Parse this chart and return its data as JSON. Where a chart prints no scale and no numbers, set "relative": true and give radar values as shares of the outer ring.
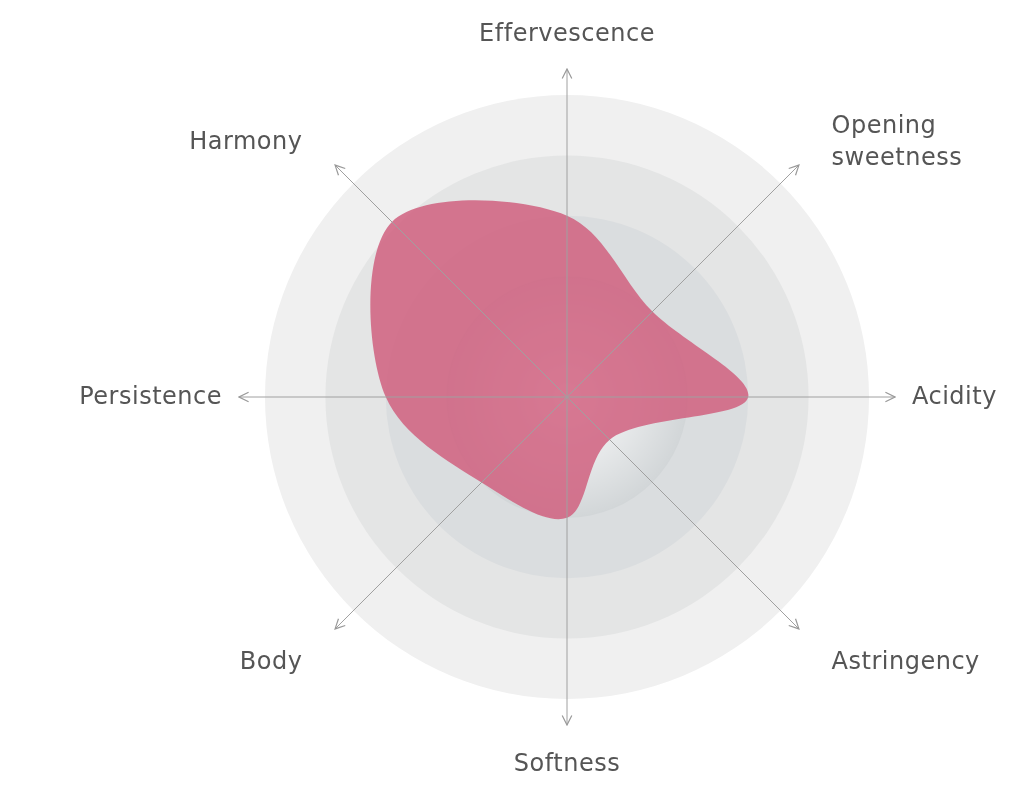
{
  "chart_data": {
    "type": "radar",
    "relative": true,
    "grid": true,
    "categories": [
      "Effervescence",
      "Opening sweetness",
      "Acidity",
      "Astringency",
      "Softness",
      "Body",
      "Persistence",
      "Harmony"
    ],
    "series": [
      {
        "color": "#d0607f",
        "values": [
          0.6,
          0.4,
          0.6,
          0.2,
          0.4,
          0.4,
          0.6,
          0.82
        ]
      }
    ]
  }
}
